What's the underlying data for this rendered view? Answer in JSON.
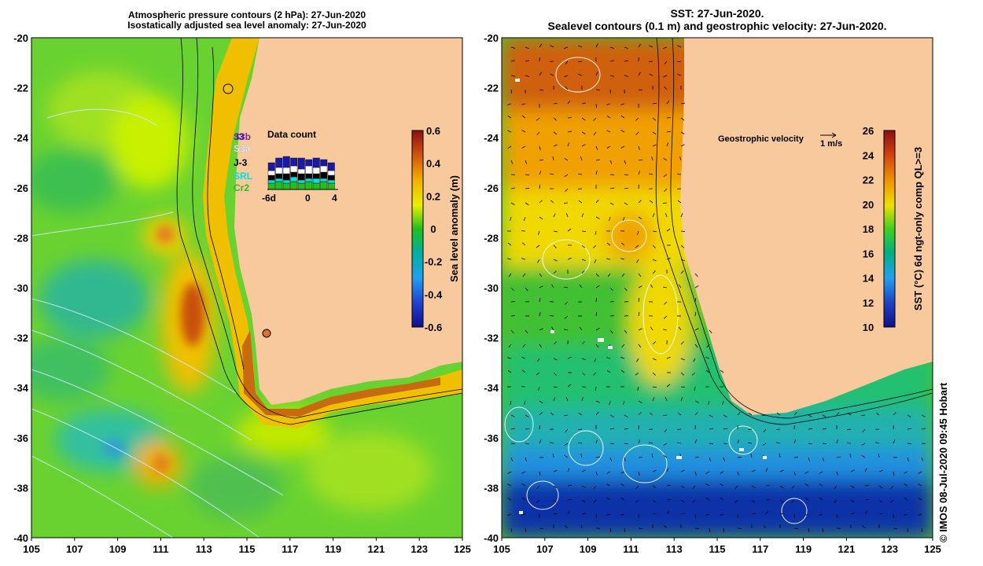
{
  "left_panel": {
    "title_line1": "Atmospheric pressure contours (2 hPa): 27-Jun-2020",
    "title_line2": "Isostatically adjusted sea level anomaly: 27-Jun-2020",
    "colorbar": {
      "label": "Sea level anomaly (m)",
      "ticks": [
        "0.6",
        "0.4",
        "0.2",
        "0",
        "-0.2",
        "-0.4",
        "-0.6"
      ]
    },
    "data_count": {
      "title": "Data count",
      "satellites": [
        "J3",
        "S3b",
        "S3a",
        "J-3",
        "SRL",
        "Cr2"
      ],
      "satellite_colors": [
        "#1a1aa8",
        "#7a2aa0",
        "#ffffff",
        "#000000",
        "#00e0e0",
        "#20c020"
      ],
      "axis_ticks": [
        "-6d",
        "0",
        "4"
      ]
    }
  },
  "right_panel": {
    "title_line1": "SST: 27-Jun-2020.",
    "title_line2": "Sealevel contours (0.1 m) and geostrophic velocity: 27-Jun-2020.",
    "geostrophic_label": "Geostrophic velocity",
    "scale_label": "1 m/s",
    "colorbar": {
      "label": "SST (°C) 6d ngt-only comp QL>=3",
      "ticks": [
        "26",
        "24",
        "22",
        "20",
        "18",
        "16",
        "14",
        "12",
        "10"
      ]
    }
  },
  "axes": {
    "x_ticks": [
      "105",
      "107",
      "109",
      "111",
      "113",
      "115",
      "117",
      "119",
      "121",
      "123",
      "125"
    ],
    "y_ticks": [
      "-20",
      "-22",
      "-24",
      "-26",
      "-28",
      "-30",
      "-32",
      "-34",
      "-36",
      "-38",
      "-40"
    ]
  },
  "credit": "© IMOS 08-Jul-2020 09:45 Hobart",
  "colors": {
    "land": "#f9c99e",
    "sla_high": "#c86a10",
    "sla_mid": "#9ee000",
    "sst_warm": "#d06010",
    "sst_mid": "#30c040",
    "sst_cold": "#1030a0"
  }
}
